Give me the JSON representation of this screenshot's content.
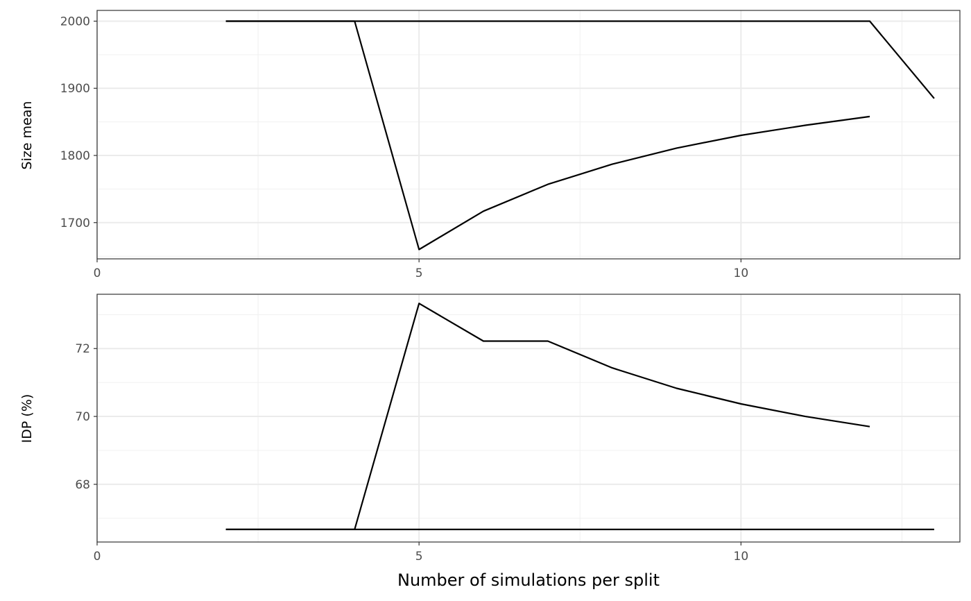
{
  "chart_data": [
    {
      "type": "line",
      "title": "",
      "xlabel": "",
      "ylabel": "Size mean",
      "xlim": [
        0,
        13.4
      ],
      "ylim": [
        1646,
        2016
      ],
      "x_ticks": [
        0,
        5,
        10
      ],
      "y_ticks": [
        1700,
        1800,
        1900,
        2000
      ],
      "grid": true,
      "line_color": "#000000",
      "series": [
        {
          "x": [
            2,
            3,
            4,
            5,
            6,
            7,
            8,
            9,
            10,
            11,
            12,
            13
          ],
          "y": [
            2000,
            2000,
            2000,
            2000,
            2000,
            2000,
            2000,
            2000,
            2000,
            2000,
            2000,
            1885
          ]
        },
        {
          "x": [
            2,
            3,
            4,
            5,
            6,
            7,
            8,
            9,
            10,
            11,
            12
          ],
          "y": [
            2000,
            2000,
            2000,
            1660,
            1717,
            1757,
            1787,
            1811,
            1830,
            1845,
            1858
          ]
        }
      ]
    },
    {
      "type": "line",
      "title": "",
      "xlabel": "Number of simulations per split",
      "ylabel": "IDP (%)",
      "xlim": [
        0,
        13.4
      ],
      "ylim": [
        66.3,
        73.6
      ],
      "x_ticks": [
        0,
        5,
        10
      ],
      "y_ticks": [
        68,
        70,
        72
      ],
      "grid": true,
      "line_color": "#000000",
      "series": [
        {
          "x": [
            2,
            3,
            4,
            5,
            6,
            7,
            8,
            9,
            10,
            11,
            12
          ],
          "y": [
            66.67,
            66.67,
            66.67,
            73.33,
            72.22,
            72.22,
            71.43,
            70.83,
            70.37,
            70.0,
            69.7
          ]
        },
        {
          "x": [
            2,
            3,
            4,
            5,
            6,
            7,
            8,
            9,
            10,
            11,
            12,
            13
          ],
          "y": [
            66.67,
            66.67,
            66.67,
            66.67,
            66.67,
            66.67,
            66.67,
            66.67,
            66.67,
            66.67,
            66.67,
            66.67
          ]
        }
      ]
    }
  ]
}
